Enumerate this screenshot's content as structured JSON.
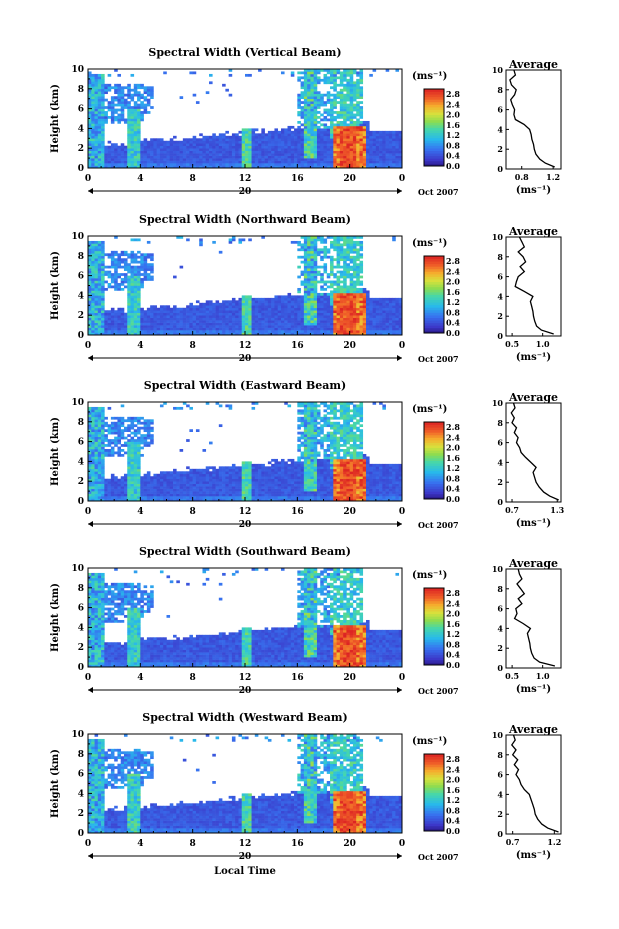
{
  "chart_data": [
    {
      "type": "heatmap",
      "title": "Spectral Width (Vertical Beam)",
      "ylabel": "Height (km)",
      "x_ticks": [
        "0",
        "4",
        "8",
        "12",
        "16",
        "20",
        "0"
      ],
      "y_ticks": [
        "0",
        "2",
        "4",
        "6",
        "8",
        "10"
      ],
      "xlim": [
        0,
        24
      ],
      "ylim": [
        0,
        10
      ],
      "date_marker": "20",
      "date_label": "Oct 2007",
      "colorbar": {
        "unit": "(ms⁻¹)",
        "ticks": [
          "0.0",
          "0.4",
          "0.8",
          "1.2",
          "1.6",
          "2.0",
          "2.4",
          "2.8"
        ],
        "range": [
          0,
          3.0
        ]
      },
      "profile": {
        "title": "Average",
        "xlabel": "(ms⁻¹)",
        "x_ticks": [
          "0.8",
          "1.2"
        ],
        "xlim": [
          0.6,
          1.3
        ],
        "heights": [
          0.2,
          0.6,
          1.0,
          1.5,
          2.0,
          2.5,
          3.0,
          3.5,
          4.0,
          4.5,
          5.0,
          5.5,
          6.0,
          6.5,
          7.0,
          7.5,
          8.0,
          8.5,
          9.0,
          9.5,
          10.0
        ],
        "values": [
          1.22,
          1.1,
          1.03,
          0.98,
          0.96,
          0.95,
          0.93,
          0.92,
          0.9,
          0.83,
          0.72,
          0.7,
          0.71,
          0.68,
          0.66,
          0.71,
          0.73,
          0.67,
          0.65,
          0.72,
          0.7
        ]
      }
    },
    {
      "type": "heatmap",
      "title": "Spectral Width (Northward Beam)",
      "ylabel": "Height (km)",
      "x_ticks": [
        "0",
        "4",
        "8",
        "12",
        "16",
        "20",
        "0"
      ],
      "y_ticks": [
        "0",
        "2",
        "4",
        "6",
        "8",
        "10"
      ],
      "xlim": [
        0,
        24
      ],
      "ylim": [
        0,
        10
      ],
      "date_marker": "20",
      "date_label": "Oct 2007",
      "colorbar": {
        "unit": "(ms⁻¹)",
        "ticks": [
          "0.0",
          "0.4",
          "0.8",
          "1.2",
          "1.6",
          "2.0",
          "2.4",
          "2.8"
        ],
        "range": [
          0,
          3.0
        ]
      },
      "profile": {
        "title": "Average",
        "xlabel": "(ms⁻¹)",
        "x_ticks": [
          "0.5",
          "1.0"
        ],
        "xlim": [
          0.4,
          1.3
        ],
        "heights": [
          0.2,
          0.6,
          1.0,
          1.5,
          2.0,
          2.5,
          3.0,
          3.5,
          4.0,
          4.5,
          5.0,
          5.5,
          6.0,
          6.5,
          7.0,
          7.5,
          8.0,
          8.5,
          9.0,
          9.5,
          10.0
        ],
        "values": [
          1.18,
          0.98,
          0.9,
          0.87,
          0.85,
          0.84,
          0.82,
          0.8,
          0.84,
          0.7,
          0.55,
          0.57,
          0.6,
          0.7,
          0.63,
          0.72,
          0.68,
          0.6,
          0.7,
          0.66,
          0.62
        ]
      }
    },
    {
      "type": "heatmap",
      "title": "Spectral Width (Eastward Beam)",
      "ylabel": "Height (km)",
      "x_ticks": [
        "0",
        "4",
        "8",
        "12",
        "16",
        "20",
        "0"
      ],
      "y_ticks": [
        "0",
        "2",
        "4",
        "6",
        "8",
        "10"
      ],
      "xlim": [
        0,
        24
      ],
      "ylim": [
        0,
        10
      ],
      "date_marker": "20",
      "date_label": "Oct 2007",
      "colorbar": {
        "unit": "(ms⁻¹)",
        "ticks": [
          "0.0",
          "0.4",
          "0.8",
          "1.2",
          "1.6",
          "2.0",
          "2.4",
          "2.8"
        ],
        "range": [
          0,
          3.0
        ]
      },
      "profile": {
        "title": "Average",
        "xlabel": "(ms⁻¹)",
        "x_ticks": [
          "0.7",
          "1.3"
        ],
        "xlim": [
          0.62,
          1.35
        ],
        "heights": [
          0.2,
          0.6,
          1.0,
          1.5,
          2.0,
          2.5,
          3.0,
          3.5,
          4.0,
          4.5,
          5.0,
          5.5,
          6.0,
          6.5,
          7.0,
          7.5,
          8.0,
          8.5,
          9.0,
          9.5,
          10.0
        ],
        "values": [
          1.32,
          1.2,
          1.12,
          1.06,
          1.02,
          1.0,
          0.98,
          1.02,
          0.95,
          0.88,
          0.82,
          0.8,
          0.76,
          0.78,
          0.73,
          0.76,
          0.7,
          0.73,
          0.69,
          0.74,
          0.72
        ]
      }
    },
    {
      "type": "heatmap",
      "title": "Spectral Width (Southward Beam)",
      "ylabel": "Height (km)",
      "x_ticks": [
        "0",
        "4",
        "8",
        "12",
        "16",
        "20",
        "0"
      ],
      "y_ticks": [
        "0",
        "2",
        "4",
        "6",
        "8",
        "10"
      ],
      "xlim": [
        0,
        24
      ],
      "ylim": [
        0,
        10
      ],
      "date_marker": "20",
      "date_label": "Oct 2007",
      "colorbar": {
        "unit": "(ms⁻¹)",
        "ticks": [
          "0.0",
          "0.4",
          "0.8",
          "1.2",
          "1.6",
          "2.0",
          "2.4",
          "2.8"
        ],
        "range": [
          0,
          3.0
        ]
      },
      "profile": {
        "title": "Average",
        "xlabel": "(ms⁻¹)",
        "x_ticks": [
          "0.5",
          "1.0"
        ],
        "xlim": [
          0.4,
          1.3
        ],
        "heights": [
          0.2,
          0.6,
          1.0,
          1.5,
          2.0,
          2.5,
          3.0,
          3.5,
          4.0,
          4.5,
          5.0,
          5.5,
          6.0,
          6.5,
          7.0,
          7.5,
          8.0,
          8.5,
          9.0,
          9.5,
          10.0
        ],
        "values": [
          1.2,
          0.95,
          0.86,
          0.82,
          0.8,
          0.79,
          0.77,
          0.75,
          0.8,
          0.68,
          0.54,
          0.58,
          0.56,
          0.66,
          0.6,
          0.7,
          0.64,
          0.58,
          0.66,
          0.62,
          0.6
        ]
      }
    },
    {
      "type": "heatmap",
      "title": "Spectral Width (Westward Beam)",
      "ylabel": "Height (km)",
      "xlabel": "Local Time",
      "x_ticks": [
        "0",
        "4",
        "8",
        "12",
        "16",
        "20",
        "0"
      ],
      "y_ticks": [
        "0",
        "2",
        "4",
        "6",
        "8",
        "10"
      ],
      "xlim": [
        0,
        24
      ],
      "ylim": [
        0,
        10
      ],
      "date_marker": "20",
      "date_label": "Oct 2007",
      "colorbar": {
        "unit": "(ms⁻¹)",
        "ticks": [
          "0.0",
          "0.4",
          "0.8",
          "1.2",
          "1.6",
          "2.0",
          "2.4",
          "2.8"
        ],
        "range": [
          0,
          3.0
        ]
      },
      "profile": {
        "title": "Average",
        "xlabel": "(ms⁻¹)",
        "x_ticks": [
          "0.7",
          "1.2"
        ],
        "xlim": [
          0.62,
          1.28
        ],
        "heights": [
          0.2,
          0.6,
          1.0,
          1.5,
          2.0,
          2.5,
          3.0,
          3.5,
          4.0,
          4.5,
          5.0,
          5.5,
          6.0,
          6.5,
          7.0,
          7.5,
          8.0,
          8.5,
          9.0,
          9.5,
          10.0
        ],
        "values": [
          1.25,
          1.12,
          1.05,
          1.0,
          0.97,
          0.96,
          0.94,
          0.92,
          0.9,
          0.84,
          0.8,
          0.78,
          0.74,
          0.77,
          0.72,
          0.76,
          0.7,
          0.74,
          0.69,
          0.73,
          0.71
        ]
      }
    }
  ]
}
